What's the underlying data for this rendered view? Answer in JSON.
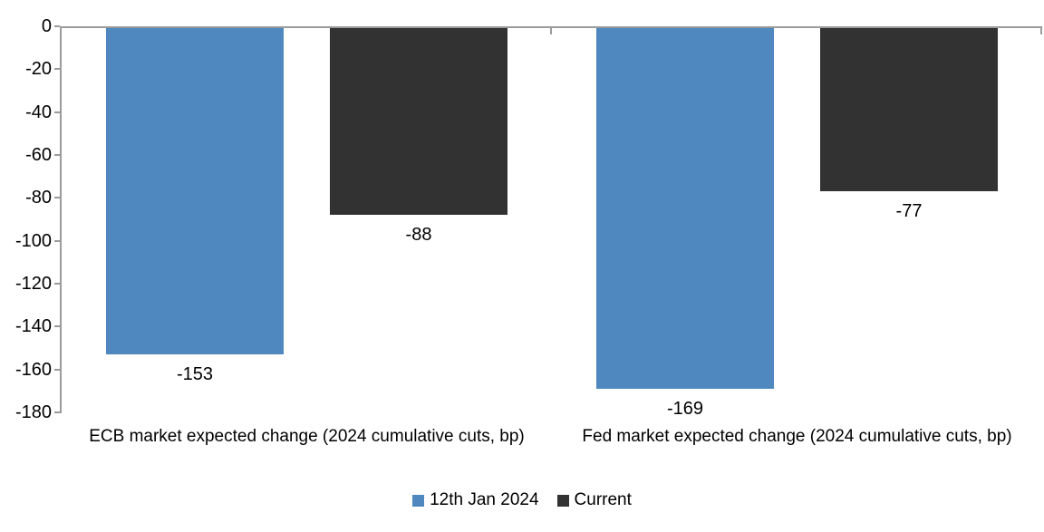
{
  "chart_data": {
    "type": "bar",
    "title": "",
    "categories": [
      "ECB market expected change (2024 cumulative cuts, bp)",
      "Fed market expected change (2024 cumulative cuts, bp)"
    ],
    "series": [
      {
        "name": "12th Jan 2024",
        "color": "#4E88BF",
        "values": [
          -153,
          -169
        ]
      },
      {
        "name": "Current",
        "color": "#323232",
        "values": [
          -88,
          -77
        ]
      }
    ],
    "data_labels": [
      [
        "-153",
        "-169"
      ],
      [
        "-88",
        "-77"
      ]
    ],
    "y_ticks": [
      "0",
      "-20",
      "-40",
      "-60",
      "-80",
      "-100",
      "-120",
      "-140",
      "-160",
      "-180"
    ],
    "y_tick_values": [
      0,
      -20,
      -40,
      -60,
      -80,
      -100,
      -120,
      -140,
      -160,
      -180
    ],
    "ylim": [
      -180,
      0
    ],
    "grid": false,
    "legend_position": "bottom",
    "colors": {
      "axis": "#9B9B9B",
      "text": "#000000",
      "background": "#FFFFFF"
    }
  }
}
